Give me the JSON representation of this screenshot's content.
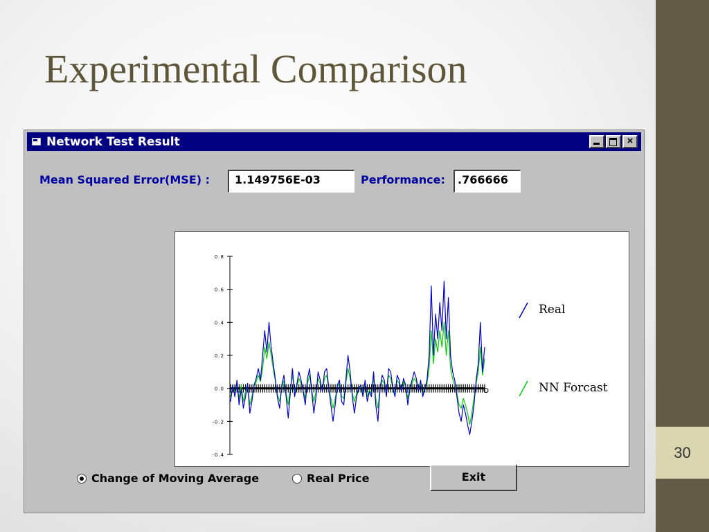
{
  "slide": {
    "title": "Experimental Comparison",
    "page_number": "30"
  },
  "window": {
    "title": "Network Test Result",
    "close_glyph": "×"
  },
  "metrics": {
    "mse_label": "Mean Squared Error(MSE) :",
    "mse_value": "1.149756E-03",
    "performance_label": "Performance:",
    "performance_value": ".766666"
  },
  "options": {
    "moving_average_label": "Change of Moving Average",
    "real_price_label": "Real Price",
    "selected": "moving_average"
  },
  "buttons": {
    "exit_label": "Exit"
  },
  "colors": {
    "real": "#0000cc",
    "forecast": "#00cc00",
    "sidebar": "#625c46",
    "title_bar": "#000080"
  },
  "chart_data": {
    "type": "line",
    "ylim": [
      -0.4,
      0.8
    ],
    "yticks": [
      -0.4,
      -0.2,
      0.0,
      0.2,
      0.4,
      0.6,
      0.8
    ],
    "ytick_labels": [
      "-0.4",
      "-0.2",
      "0.0",
      "0.2",
      "0.4",
      "0.6",
      "0.8"
    ],
    "legend_position": "right",
    "series": [
      {
        "name": "Real",
        "color": "#0000cc",
        "values": [
          -0.08,
          0.02,
          -0.05,
          0.05,
          -0.1,
          0.0,
          -0.12,
          -0.05,
          0.03,
          -0.15,
          -0.08,
          0.02,
          0.06,
          0.12,
          0.05,
          0.2,
          0.35,
          0.22,
          0.4,
          0.25,
          0.15,
          0.05,
          -0.06,
          -0.12,
          0.02,
          0.08,
          -0.05,
          -0.18,
          -0.02,
          0.12,
          -0.05,
          0.02,
          0.1,
          0.05,
          -0.02,
          -0.1,
          0.06,
          0.12,
          -0.02,
          -0.15,
          -0.05,
          0.1,
          0.05,
          -0.02,
          0.1,
          0.12,
          0.0,
          -0.1,
          -0.2,
          -0.1,
          0.02,
          0.05,
          -0.08,
          -0.1,
          0.05,
          0.2,
          0.1,
          -0.05,
          -0.15,
          -0.05,
          0.0,
          0.02,
          -0.05,
          0.05,
          -0.08,
          -0.02,
          -0.05,
          0.1,
          -0.1,
          -0.2,
          0.0,
          0.08,
          0.05,
          -0.05,
          0.12,
          0.1,
          0.0,
          -0.05,
          0.08,
          0.05,
          -0.02,
          0.06,
          0.02,
          -0.1,
          0.0,
          0.05,
          0.1,
          0.06,
          -0.02,
          0.05,
          -0.05,
          0.0,
          0.05,
          0.2,
          0.62,
          0.2,
          0.45,
          0.3,
          0.52,
          0.35,
          0.65,
          0.3,
          0.55,
          0.2,
          0.1,
          0.05,
          -0.05,
          -0.15,
          -0.2,
          -0.1,
          -0.15,
          -0.22,
          -0.28,
          -0.2,
          -0.1,
          0.05,
          0.15,
          0.4,
          0.1,
          0.25
        ]
      },
      {
        "name": "NN Forcast",
        "color": "#00cc00",
        "values": [
          -0.05,
          0.0,
          -0.02,
          0.02,
          -0.06,
          0.02,
          -0.08,
          -0.02,
          0.02,
          -0.1,
          -0.05,
          0.01,
          0.04,
          0.08,
          0.04,
          0.12,
          0.25,
          0.18,
          0.28,
          0.2,
          0.12,
          0.04,
          -0.04,
          -0.08,
          0.0,
          0.05,
          -0.03,
          -0.1,
          0.0,
          0.08,
          -0.02,
          0.01,
          0.06,
          0.03,
          -0.01,
          -0.06,
          0.03,
          0.08,
          -0.01,
          -0.08,
          -0.02,
          0.06,
          0.03,
          -0.01,
          0.06,
          0.08,
          0.0,
          -0.06,
          -0.12,
          -0.06,
          0.01,
          0.03,
          -0.05,
          -0.06,
          0.03,
          0.12,
          0.06,
          -0.03,
          -0.08,
          -0.03,
          0.0,
          0.01,
          -0.03,
          0.03,
          -0.05,
          -0.01,
          -0.03,
          0.06,
          -0.06,
          -0.12,
          0.0,
          0.05,
          0.03,
          -0.03,
          0.08,
          0.06,
          0.0,
          -0.03,
          0.05,
          0.03,
          -0.01,
          0.04,
          0.01,
          -0.06,
          0.0,
          0.03,
          0.06,
          0.04,
          -0.01,
          0.03,
          -0.03,
          0.0,
          0.03,
          0.12,
          0.35,
          0.15,
          0.3,
          0.22,
          0.35,
          0.25,
          0.4,
          0.2,
          0.35,
          0.12,
          0.06,
          0.02,
          -0.03,
          -0.1,
          -0.12,
          -0.06,
          -0.1,
          -0.15,
          -0.22,
          -0.15,
          -0.06,
          0.03,
          0.1,
          0.25,
          0.08,
          0.18
        ]
      }
    ]
  }
}
